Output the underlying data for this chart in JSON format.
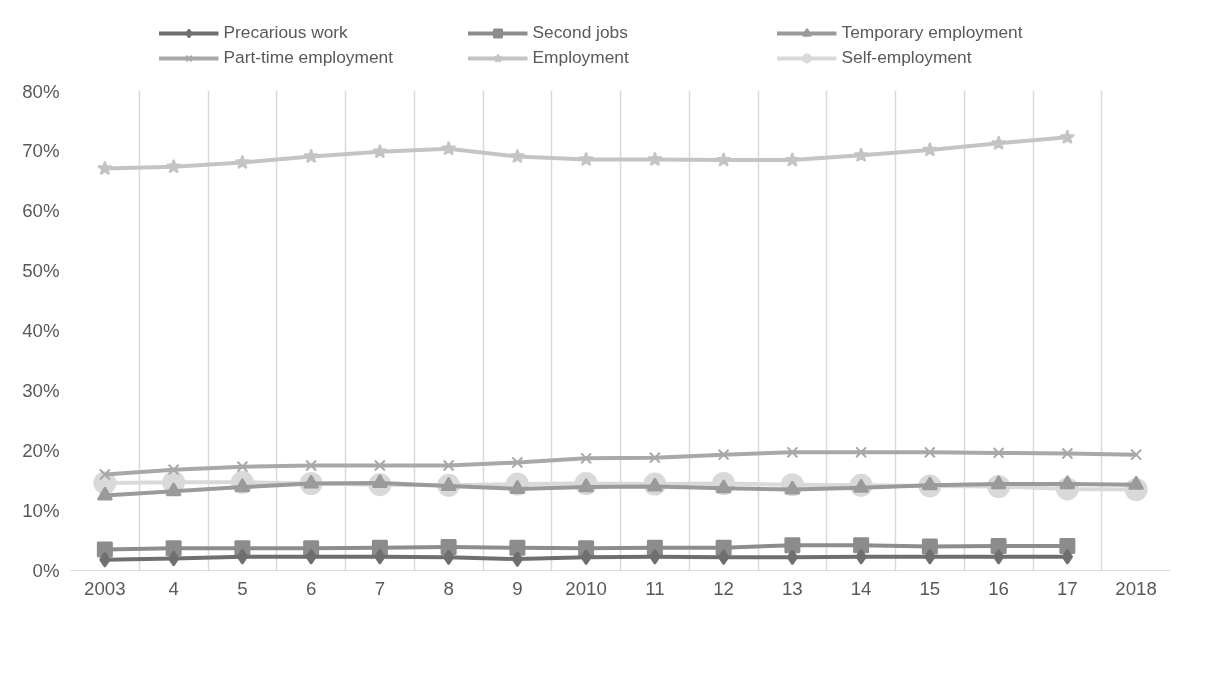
{
  "chart_data": {
    "type": "line",
    "categories": [
      "2003",
      "4",
      "5",
      "6",
      "7",
      "8",
      "9",
      "2010",
      "11",
      "12",
      "13",
      "14",
      "15",
      "16",
      "17",
      "2018"
    ],
    "series": [
      {
        "name": "Precarious work",
        "color": "#6f6f6f",
        "marker": "diamond",
        "values": [
          1.8,
          2.0,
          2.3,
          2.3,
          2.3,
          2.2,
          1.9,
          2.2,
          2.3,
          2.2,
          2.2,
          2.3,
          2.3,
          2.3,
          2.3,
          null
        ]
      },
      {
        "name": "Second jobs",
        "color": "#8c8c8c",
        "marker": "square",
        "values": [
          3.5,
          3.7,
          3.7,
          3.7,
          3.8,
          3.9,
          3.8,
          3.7,
          3.8,
          3.8,
          4.2,
          4.2,
          4.0,
          4.1,
          4.1,
          null
        ]
      },
      {
        "name": "Temporary employment",
        "color": "#9a9a9a",
        "marker": "triangle",
        "values": [
          12.5,
          13.2,
          13.9,
          14.5,
          14.6,
          14.1,
          13.6,
          13.9,
          14.0,
          13.7,
          13.5,
          13.8,
          14.2,
          14.4,
          14.4,
          14.3
        ]
      },
      {
        "name": "Part-time employment",
        "color": "#a8a8a8",
        "marker": "cross",
        "values": [
          16.0,
          16.8,
          17.3,
          17.5,
          17.5,
          17.5,
          18.0,
          18.7,
          18.8,
          19.3,
          19.7,
          19.7,
          19.7,
          19.6,
          19.5,
          19.3
        ]
      },
      {
        "name": "Employment",
        "color": "#c4c4c4",
        "marker": "star",
        "values": [
          67.0,
          67.3,
          68.0,
          69.0,
          69.8,
          70.3,
          69.0,
          68.5,
          68.5,
          68.4,
          68.4,
          69.2,
          70.1,
          71.2,
          72.2,
          null
        ]
      },
      {
        "name": "Self-employment",
        "color": "#d9d9d9",
        "marker": "circle",
        "values": [
          14.6,
          14.7,
          14.7,
          14.5,
          14.3,
          14.2,
          14.4,
          14.5,
          14.4,
          14.5,
          14.3,
          14.2,
          14.1,
          14.0,
          13.6,
          13.5
        ]
      }
    ],
    "ylim": [
      0,
      80
    ],
    "yticks": [
      {
        "value": 0,
        "label": "0%"
      },
      {
        "value": 10,
        "label": "10%"
      },
      {
        "value": 20,
        "label": "20%"
      },
      {
        "value": 30,
        "label": "30%"
      },
      {
        "value": 40,
        "label": "40%"
      },
      {
        "value": 50,
        "label": "50%"
      },
      {
        "value": 60,
        "label": "60%"
      },
      {
        "value": 70,
        "label": "70%"
      },
      {
        "value": 80,
        "label": "80%"
      }
    ],
    "grid": "x",
    "legend": "top",
    "line_style": "solid"
  }
}
